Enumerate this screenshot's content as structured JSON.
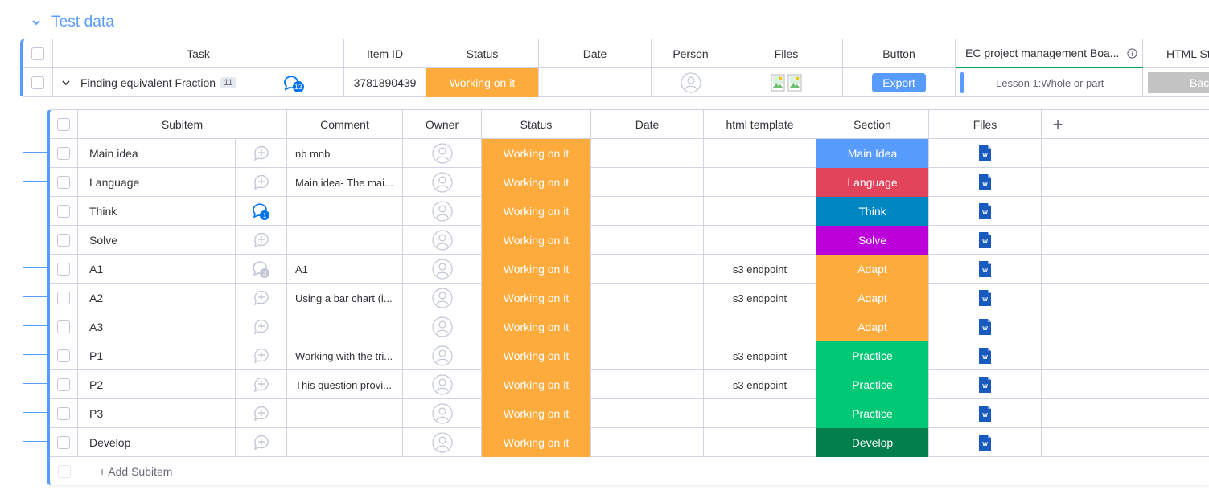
{
  "group": {
    "title": "Test data",
    "color": "#579bfc"
  },
  "main_table": {
    "headers": {
      "task": "Task",
      "item_id": "Item ID",
      "status": "Status",
      "date": "Date",
      "person": "Person",
      "files": "Files",
      "button": "Button",
      "ec_board": "EC project management Boa...",
      "html_st": "HTML St"
    },
    "item": {
      "name": "Finding equivalent Fraction",
      "subitem_count": "11",
      "updates_count": "13",
      "item_id": "3781890439",
      "status": "Working on it",
      "button_label": "Export",
      "ec_board_value": "Lesson 1:Whole or part",
      "html_status": "Backlo"
    }
  },
  "subitems_table": {
    "headers": {
      "subitem": "Subitem",
      "comment": "Comment",
      "owner": "Owner",
      "status": "Status",
      "date": "Date",
      "html_template": "html template",
      "section": "Section",
      "files": "Files",
      "add_column": "+"
    },
    "rows": [
      {
        "name": "Main idea",
        "updates": "",
        "comment": "nb mnb",
        "status": "Working on it",
        "html_template": "",
        "section": "Main Idea",
        "section_color": "#579bfc"
      },
      {
        "name": "Language",
        "updates": "",
        "comment": "Main idea- The mai...",
        "status": "Working on it",
        "html_template": "",
        "section": "Language",
        "section_color": "#e2445c"
      },
      {
        "name": "Think",
        "updates": "1",
        "comment": "",
        "status": "Working on it",
        "html_template": "",
        "section": "Think",
        "section_color": "#0086c0"
      },
      {
        "name": "Solve",
        "updates": "",
        "comment": "",
        "status": "Working on it",
        "html_template": "",
        "section": "Solve",
        "section_color": "#bb00d9"
      },
      {
        "name": "A1",
        "updates": "3",
        "comment": "A1",
        "status": "Working on it",
        "html_template": "s3 endpoint",
        "section": "Adapt",
        "section_color": "#fdab3d"
      },
      {
        "name": "A2",
        "updates": "",
        "comment": "Using a bar chart (i...",
        "status": "Working on it",
        "html_template": "s3 endpoint",
        "section": "Adapt",
        "section_color": "#fdab3d"
      },
      {
        "name": "A3",
        "updates": "",
        "comment": "",
        "status": "Working on it",
        "html_template": "",
        "section": "Adapt",
        "section_color": "#fdab3d"
      },
      {
        "name": "P1",
        "updates": "",
        "comment": "Working with the tri...",
        "status": "Working on it",
        "html_template": "s3 endpoint",
        "section": "Practice",
        "section_color": "#00c875"
      },
      {
        "name": "P2",
        "updates": "",
        "comment": "This question provi...",
        "status": "Working on it",
        "html_template": "s3 endpoint",
        "section": "Practice",
        "section_color": "#00c875"
      },
      {
        "name": "P3",
        "updates": "",
        "comment": "",
        "status": "Working on it",
        "html_template": "",
        "section": "Practice",
        "section_color": "#00c875"
      },
      {
        "name": "Develop",
        "updates": "",
        "comment": "",
        "status": "Working on it",
        "html_template": "",
        "section": "Develop",
        "section_color": "#037f4c"
      }
    ],
    "add_label": "+ Add Subitem"
  },
  "colors": {
    "status_working": "#fdab3d",
    "accent": "#579bfc",
    "word_icon": "#185abd"
  }
}
